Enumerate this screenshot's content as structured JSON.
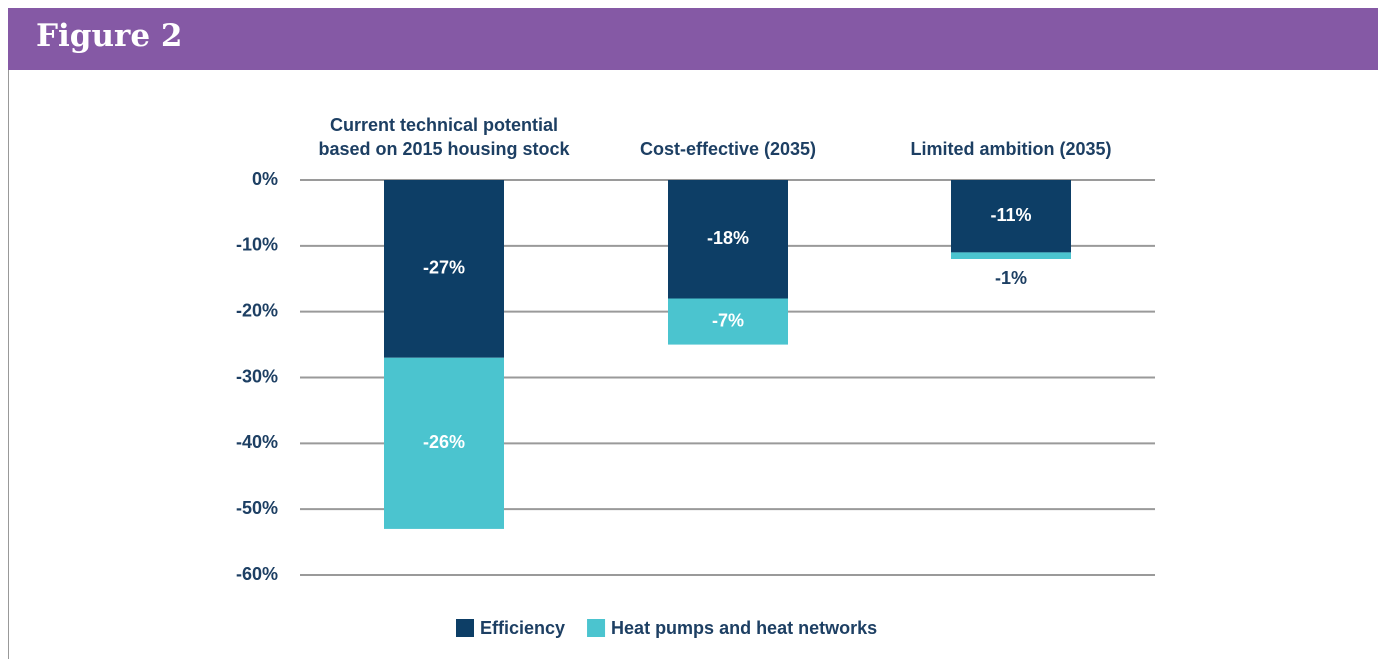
{
  "header": {
    "title": "Figure 2"
  },
  "chart_data": {
    "type": "stacked_bar",
    "categories": [
      [
        "Current technical potential",
        "based on 2015 housing stock"
      ],
      "Cost-effective (2035)",
      "Limited ambition (2035)"
    ],
    "series": [
      {
        "name": "Efficiency",
        "color": "#0d3e66",
        "values": [
          -27,
          -18,
          -11
        ],
        "value_labels": [
          "-27%",
          "-18%",
          "-11%"
        ]
      },
      {
        "name": "Heat pumps and heat networks",
        "color": "#4bc4cf",
        "values": [
          -26,
          -7,
          -1
        ],
        "value_labels": [
          "-26%",
          "-7%",
          "-1%"
        ]
      }
    ],
    "ylim": [
      -60,
      0
    ],
    "yticks": [
      {
        "value": 0,
        "label": "0%"
      },
      {
        "value": -10,
        "label": "-10%"
      },
      {
        "value": -20,
        "label": "-20%"
      },
      {
        "value": -30,
        "label": "-30%"
      },
      {
        "value": -40,
        "label": "-40%"
      },
      {
        "value": -50,
        "label": "-50%"
      },
      {
        "value": -60,
        "label": "-60%"
      }
    ],
    "grid": true,
    "legend": "bottom"
  }
}
